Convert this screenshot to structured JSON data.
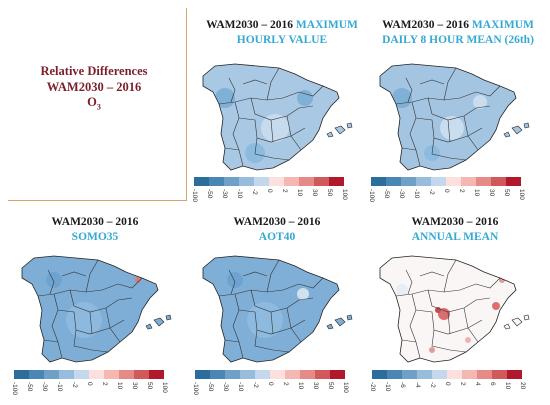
{
  "figure": {
    "main_title": {
      "line1": "Relative Differences",
      "line2": "WAM2030 – 2016",
      "line3_base": "O",
      "line3_sub": "3"
    },
    "panels": [
      {
        "id": "max-hourly",
        "title_dark": "WAM2030 – 2016",
        "title_blue_1": "MAXIMUM",
        "title_blue_2": "HOURLY VALUE",
        "scale": [
          "-100",
          "-50",
          "-30",
          "-10",
          "-2",
          "0",
          "2",
          "10",
          "30",
          "50",
          "100"
        ]
      },
      {
        "id": "max-8h",
        "title_dark": "WAM2030 – 2016",
        "title_blue_1": "MAXIMUM",
        "title_blue_2": "DAILY 8 HOUR MEAN (26th)",
        "scale": [
          "-100",
          "-50",
          "-30",
          "-10",
          "-2",
          "0",
          "2",
          "10",
          "30",
          "50",
          "100"
        ]
      },
      {
        "id": "somo35",
        "title_dark": "WAM2030 – 2016",
        "title_blue_2": "SOMO35",
        "scale": [
          "-100",
          "-50",
          "-30",
          "-10",
          "-2",
          "0",
          "2",
          "10",
          "30",
          "50",
          "100"
        ]
      },
      {
        "id": "aot40",
        "title_dark": "WAM2030 – 2016",
        "title_blue_2": "AOT40",
        "scale": [
          "-100",
          "-50",
          "-30",
          "-10",
          "-2",
          "0",
          "2",
          "10",
          "30",
          "50",
          "100"
        ]
      },
      {
        "id": "annual-mean",
        "title_dark": "WAM2030 – 2016",
        "title_blue_2": "ANNUAL MEAN",
        "scale": [
          "-20",
          "-10",
          "-6",
          "-4",
          "-2",
          "0",
          "2",
          "4",
          "6",
          "10",
          "20"
        ]
      }
    ],
    "colors": {
      "main_title": "#7b1f2b",
      "panel_title_blue": "#35a9d4",
      "divider": "#d6a46b",
      "decrease_strong": "#2b6e9e",
      "decrease_light": "#c9dcec",
      "increase_light": "#f4c9c6",
      "increase_strong": "#b2182b"
    }
  }
}
